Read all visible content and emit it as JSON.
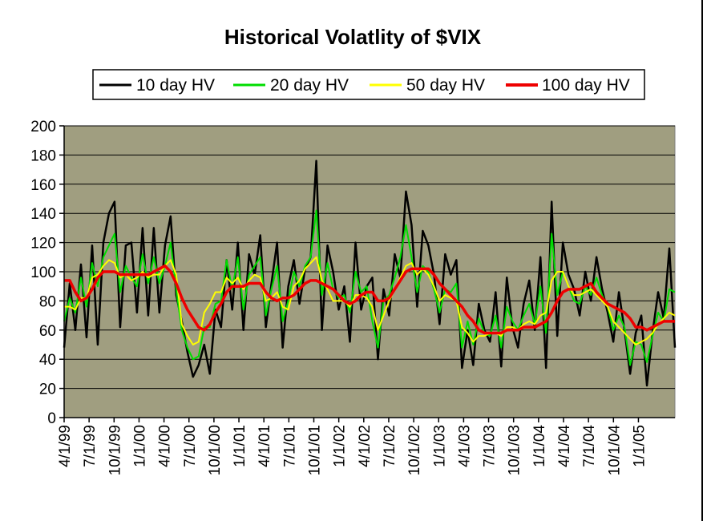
{
  "chart_data": {
    "type": "line",
    "title": "Historical Volatlity of $VIX",
    "xlabel": "",
    "ylabel": "",
    "ylim": [
      0,
      200
    ],
    "yticks": [
      0,
      20,
      40,
      60,
      80,
      100,
      120,
      140,
      160,
      180,
      200
    ],
    "x_tick_labels": [
      "4/1/99",
      "7/1/99",
      "10/1/99",
      "1/1/00",
      "4/1/00",
      "7/1/00",
      "10/1/00",
      "1/1/01",
      "4/1/01",
      "7/1/01",
      "10/1/01",
      "1/1/02",
      "4/1/02",
      "7/1/02",
      "10/1/02",
      "1/1/03",
      "4/1/03",
      "7/1/03",
      "10/1/03",
      "1/1/04",
      "4/1/04",
      "7/1/04",
      "10/1/04",
      "1/1/05"
    ],
    "grid": true,
    "legend_position": "top",
    "plot_background": "#a09e80",
    "series": [
      {
        "name": "10 day HV",
        "color": "#000000",
        "values": [
          48,
          92,
          60,
          105,
          55,
          118,
          50,
          120,
          140,
          148,
          62,
          118,
          120,
          72,
          130,
          70,
          130,
          72,
          118,
          138,
          84,
          66,
          45,
          28,
          36,
          50,
          30,
          74,
          62,
          108,
          74,
          120,
          60,
          112,
          98,
          125,
          62,
          92,
          120,
          48,
          90,
          108,
          78,
          102,
          110,
          176,
          60,
          118,
          100,
          74,
          90,
          52,
          120,
          74,
          90,
          96,
          40,
          88,
          70,
          112,
          96,
          155,
          132,
          76,
          128,
          118,
          98,
          64,
          112,
          98,
          108,
          34,
          60,
          36,
          78,
          60,
          52,
          86,
          35,
          96,
          62,
          48,
          78,
          94,
          60,
          110,
          34,
          148,
          56,
          120,
          98,
          88,
          70,
          100,
          80,
          110,
          88,
          72,
          52,
          86,
          60,
          30,
          58,
          70,
          22,
          58,
          86,
          68,
          116,
          48
        ]
      },
      {
        "name": "20 day HV",
        "color": "#00dd00",
        "values": [
          66,
          82,
          72,
          96,
          76,
          106,
          90,
          110,
          118,
          126,
          86,
          104,
          96,
          90,
          112,
          92,
          110,
          92,
          104,
          120,
          88,
          60,
          48,
          40,
          42,
          62,
          62,
          78,
          80,
          108,
          88,
          110,
          74,
          98,
          104,
          110,
          70,
          88,
          104,
          66,
          80,
          100,
          90,
          104,
          110,
          142,
          84,
          106,
          88,
          82,
          84,
          72,
          100,
          86,
          90,
          66,
          48,
          80,
          84,
          96,
          110,
          132,
          110,
          86,
          104,
          100,
          88,
          72,
          88,
          86,
          92,
          48,
          66,
          50,
          68,
          58,
          56,
          70,
          48,
          76,
          66,
          60,
          70,
          78,
          64,
          90,
          58,
          126,
          84,
          100,
          90,
          80,
          78,
          90,
          84,
          96,
          84,
          76,
          60,
          70,
          62,
          36,
          52,
          50,
          38,
          56,
          72,
          66,
          88,
          86
        ]
      },
      {
        "name": "50 day HV",
        "color": "#ffff00",
        "values": [
          76,
          76,
          74,
          82,
          82,
          96,
          98,
          104,
          108,
          106,
          96,
          98,
          94,
          96,
          100,
          96,
          98,
          98,
          104,
          108,
          98,
          64,
          56,
          50,
          52,
          72,
          78,
          86,
          86,
          96,
          92,
          96,
          88,
          94,
          98,
          96,
          80,
          82,
          86,
          76,
          74,
          90,
          94,
          102,
          106,
          110,
          94,
          88,
          80,
          80,
          80,
          76,
          84,
          84,
          82,
          76,
          60,
          70,
          80,
          88,
          96,
          104,
          106,
          98,
          102,
          98,
          90,
          80,
          84,
          82,
          80,
          62,
          58,
          52,
          56,
          56,
          58,
          58,
          56,
          62,
          62,
          60,
          64,
          66,
          64,
          70,
          72,
          94,
          100,
          100,
          90,
          84,
          84,
          86,
          88,
          84,
          80,
          76,
          66,
          62,
          58,
          54,
          50,
          52,
          54,
          58,
          64,
          68,
          72,
          70
        ]
      },
      {
        "name": "100 day HV",
        "color": "#ee0000",
        "values": [
          94,
          94,
          86,
          80,
          82,
          88,
          96,
          100,
          100,
          100,
          98,
          98,
          98,
          98,
          98,
          98,
          100,
          102,
          104,
          100,
          92,
          82,
          74,
          68,
          62,
          60,
          64,
          72,
          78,
          86,
          90,
          90,
          90,
          92,
          92,
          92,
          86,
          82,
          80,
          82,
          82,
          84,
          88,
          92,
          94,
          94,
          92,
          90,
          88,
          84,
          80,
          78,
          80,
          84,
          86,
          86,
          80,
          80,
          82,
          88,
          94,
          100,
          102,
          102,
          102,
          102,
          98,
          92,
          88,
          84,
          80,
          76,
          70,
          66,
          60,
          58,
          58,
          58,
          58,
          60,
          60,
          60,
          62,
          62,
          62,
          64,
          66,
          72,
          80,
          86,
          88,
          88,
          88,
          90,
          92,
          86,
          82,
          78,
          76,
          74,
          72,
          68,
          62,
          62,
          60,
          62,
          64,
          66,
          66,
          66
        ]
      }
    ]
  }
}
